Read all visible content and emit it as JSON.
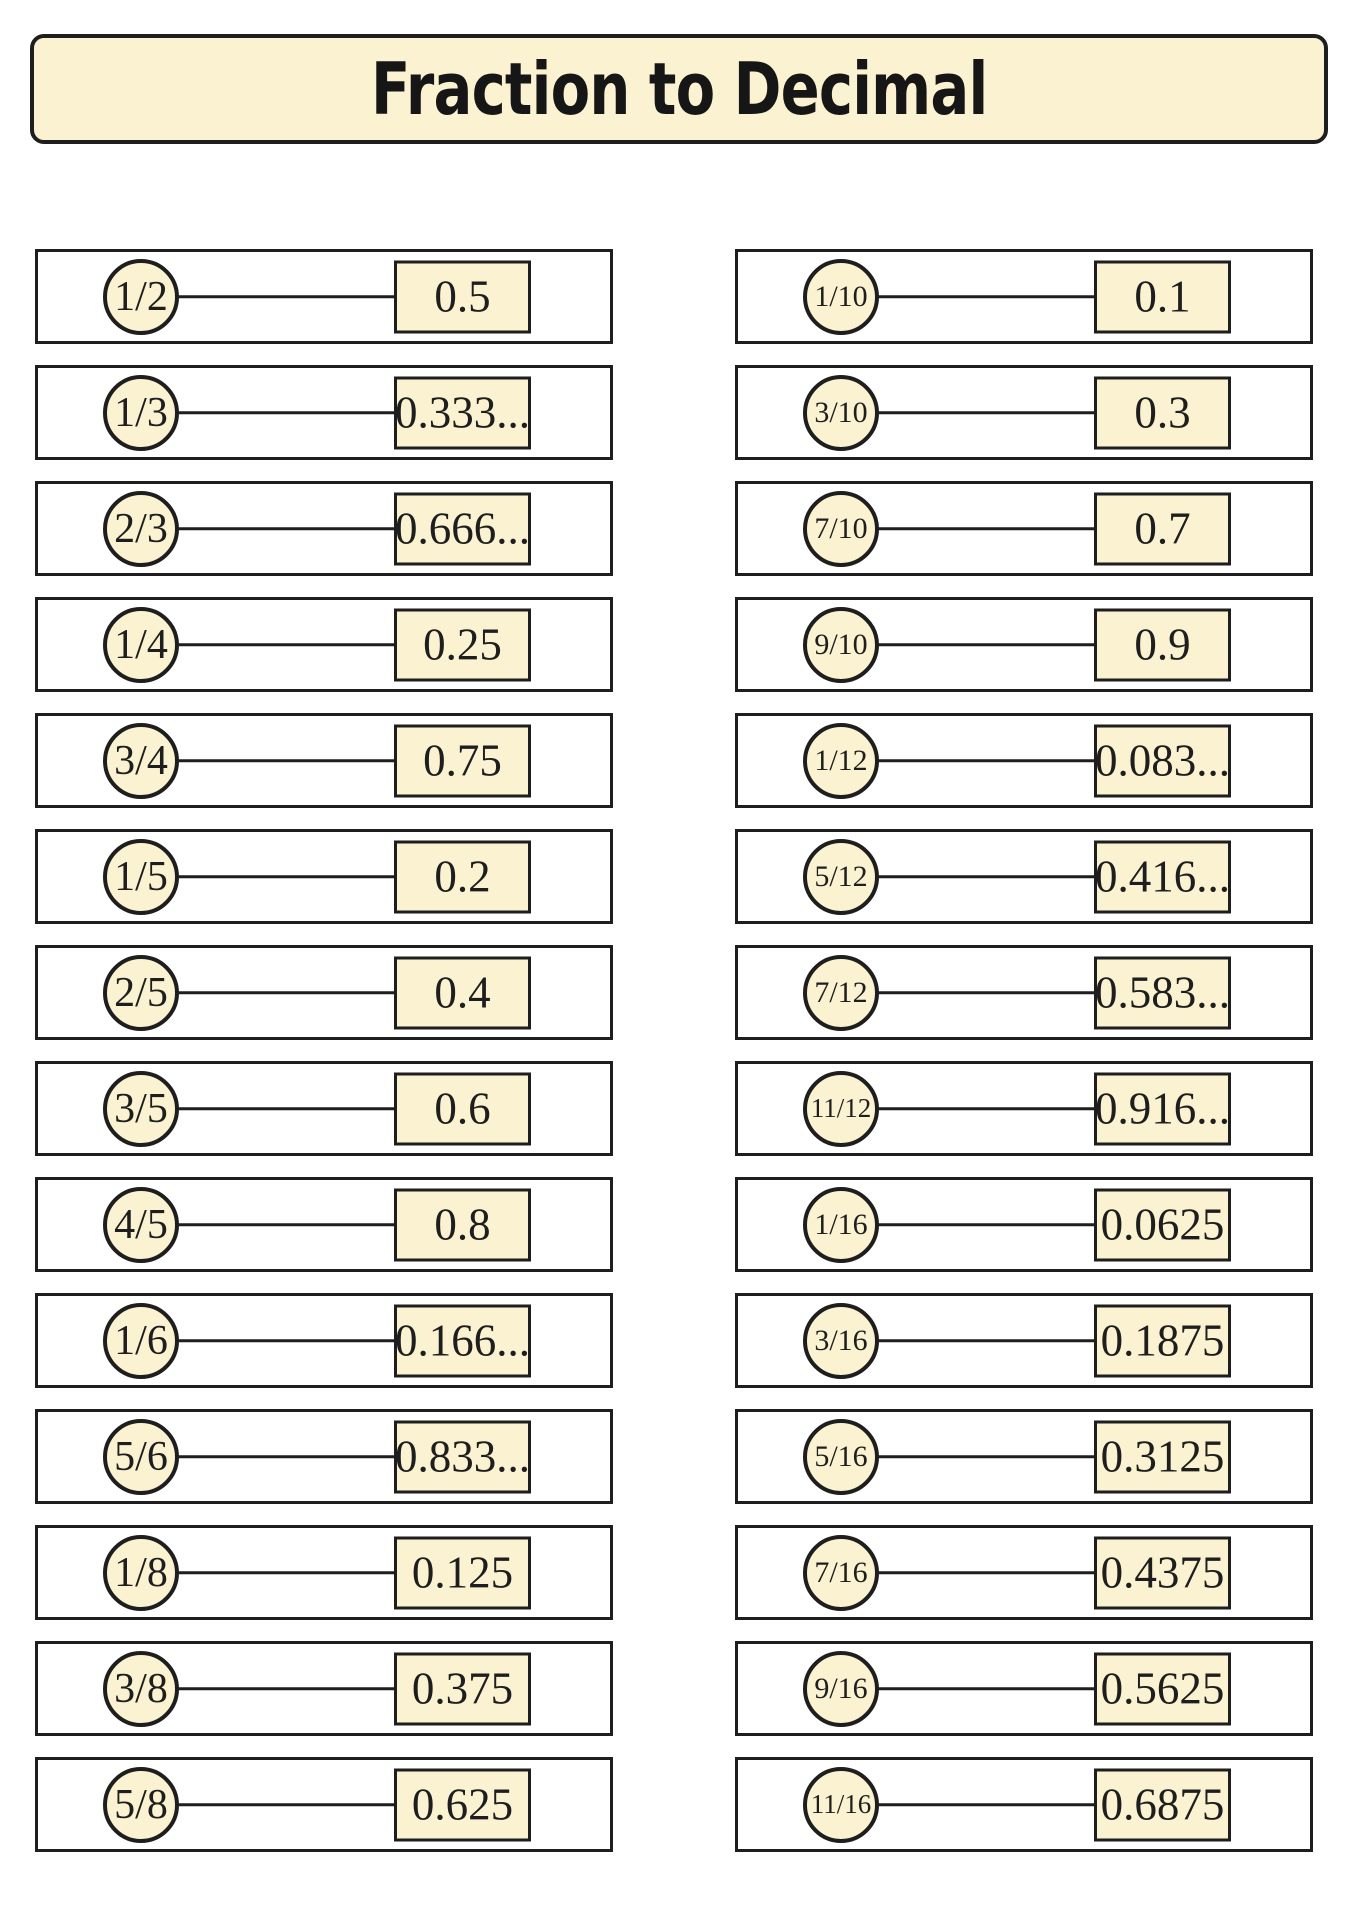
{
  "title": "Fraction to Decimal",
  "colors": {
    "cream": "#faf2d1",
    "ink": "#1e1e1e",
    "background": "#ffffff"
  },
  "columns": {
    "left": [
      {
        "fraction": "1/2",
        "decimal": "0.5"
      },
      {
        "fraction": "1/3",
        "decimal": "0.333..."
      },
      {
        "fraction": "2/3",
        "decimal": "0.666..."
      },
      {
        "fraction": "1/4",
        "decimal": "0.25"
      },
      {
        "fraction": "3/4",
        "decimal": "0.75"
      },
      {
        "fraction": "1/5",
        "decimal": "0.2"
      },
      {
        "fraction": "2/5",
        "decimal": "0.4"
      },
      {
        "fraction": "3/5",
        "decimal": "0.6"
      },
      {
        "fraction": "4/5",
        "decimal": "0.8"
      },
      {
        "fraction": "1/6",
        "decimal": "0.166..."
      },
      {
        "fraction": "5/6",
        "decimal": "0.833..."
      },
      {
        "fraction": "1/8",
        "decimal": "0.125"
      },
      {
        "fraction": "3/8",
        "decimal": "0.375"
      },
      {
        "fraction": "5/8",
        "decimal": "0.625"
      }
    ],
    "right": [
      {
        "fraction": "1/10",
        "decimal": "0.1"
      },
      {
        "fraction": "3/10",
        "decimal": "0.3"
      },
      {
        "fraction": "7/10",
        "decimal": "0.7"
      },
      {
        "fraction": "9/10",
        "decimal": "0.9"
      },
      {
        "fraction": "1/12",
        "decimal": "0.083..."
      },
      {
        "fraction": "5/12",
        "decimal": "0.416..."
      },
      {
        "fraction": "7/12",
        "decimal": "0.583..."
      },
      {
        "fraction": "11/12",
        "decimal": "0.916..."
      },
      {
        "fraction": "1/16",
        "decimal": "0.0625"
      },
      {
        "fraction": "3/16",
        "decimal": "0.1875"
      },
      {
        "fraction": "5/16",
        "decimal": "0.3125"
      },
      {
        "fraction": "7/16",
        "decimal": "0.4375"
      },
      {
        "fraction": "9/16",
        "decimal": "0.5625"
      },
      {
        "fraction": "11/16",
        "decimal": "0.6875"
      }
    ]
  }
}
